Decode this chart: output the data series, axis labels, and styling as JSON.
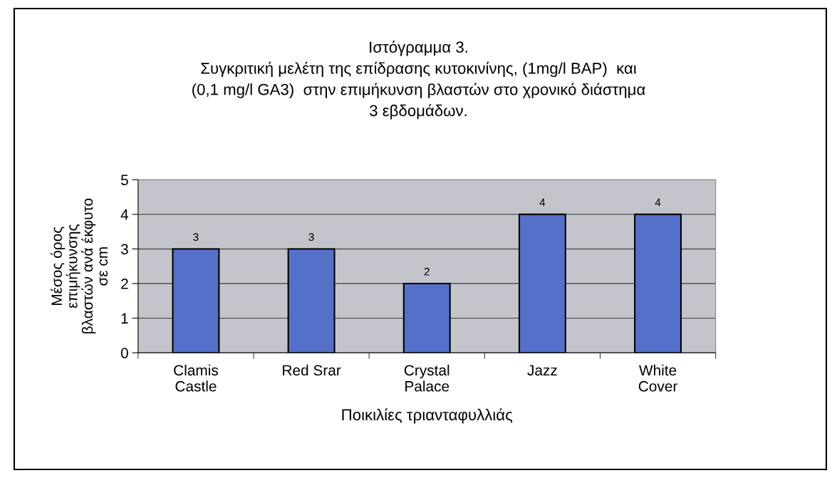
{
  "chart_data": {
    "type": "bar",
    "title": "Ιστόγραμμα 3.\nΣυγκριτική μελέτη της επίδρασης κυτοκινίνης, (1mg/l BAP)  και\n(0,1 mg/l GA3)  στην επιμήκυνση βλαστών στο χρονικό διάστημα\n3 εβδομάδων.",
    "xlabel": "Ποικιλίες τριανταφυλλιάς",
    "ylabel": "Μέσος όρος\nεπιμήκυνσης\nβλαστών ανά έκφυτο\nσε cm",
    "categories": [
      "Clamis\nCastle",
      "Red Srar",
      "Crystal\nPalace",
      "Jazz",
      "White\nCover"
    ],
    "values": [
      3,
      3,
      2,
      4,
      4
    ],
    "color": "#5470c8",
    "ylim": [
      0,
      5
    ],
    "yticks": [
      0,
      1,
      2,
      3,
      4,
      5
    ],
    "grid": "y",
    "data_labels": true,
    "legend": false
  }
}
